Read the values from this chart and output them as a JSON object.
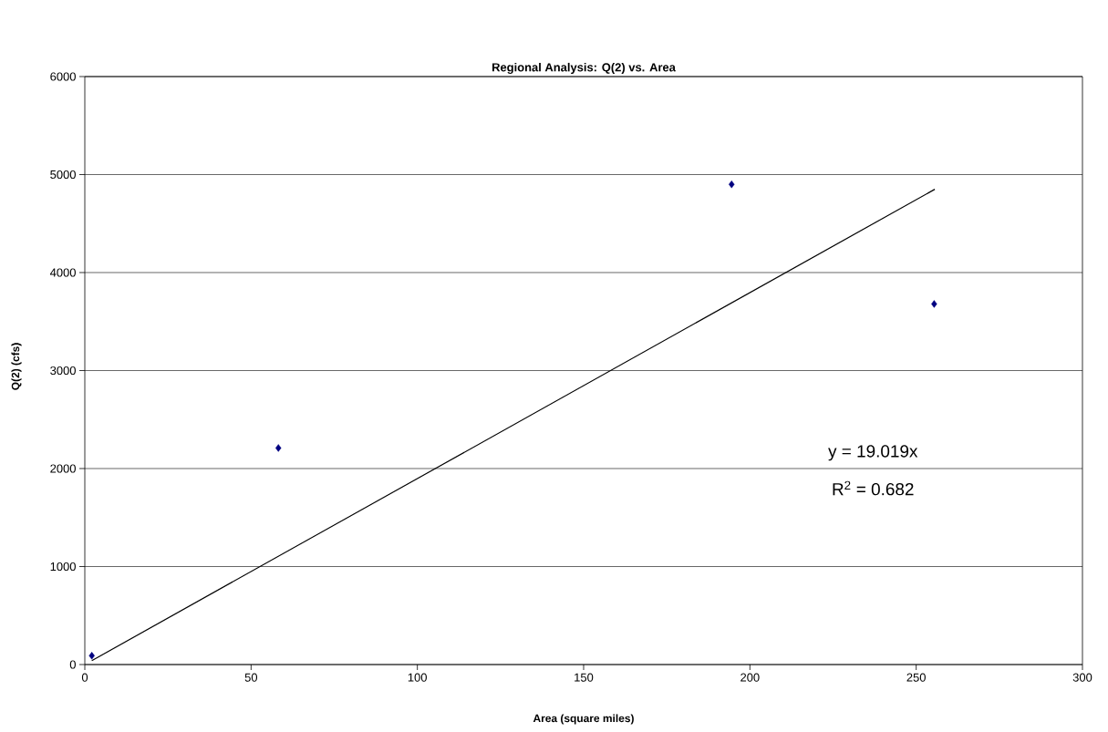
{
  "chart_data": {
    "type": "scatter",
    "title": "Regional Analysis: Q(2) vs. Area",
    "xlabel": "Area (square miles)",
    "ylabel": "Q(2) (cfs)",
    "xlim": [
      0,
      300
    ],
    "xticks": [
      0,
      50,
      100,
      150,
      200,
      250,
      300
    ],
    "ylim": [
      0,
      6000
    ],
    "yticks": [
      0,
      1000,
      2000,
      3000,
      4000,
      5000,
      6000
    ],
    "grid": "y",
    "marker": "diamond",
    "series": [
      {
        "color": "#000080",
        "x": [
          2.1,
          58.2,
          194.5,
          255.4
        ],
        "values": [
          90,
          2210,
          4900,
          3680
        ]
      },
      {
        "type": "line",
        "color": "#000000",
        "marker": "none",
        "x": [
          2.1,
          255.6
        ],
        "values": [
          40,
          4850
        ]
      }
    ],
    "annotations": [
      "y = 19.019x",
      "R$^{2}$ = 0.682"
    ]
  }
}
